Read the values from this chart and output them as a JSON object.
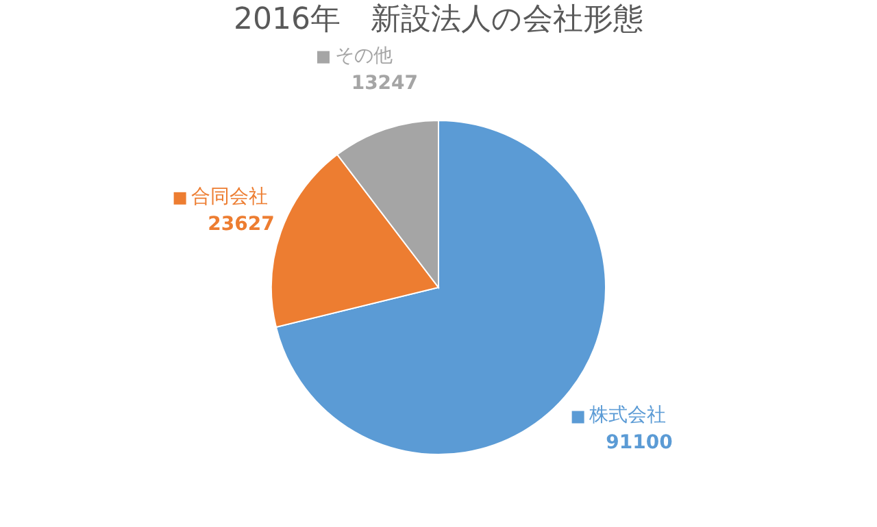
{
  "chart_data": {
    "type": "pie",
    "title": "2016年　新設法人の会社形態",
    "categories": [
      "株式会社",
      "合同会社",
      "その他"
    ],
    "values": [
      91100,
      23627,
      13247
    ],
    "colors": [
      "#5b9bd5",
      "#ed7d31",
      "#a5a5a5"
    ],
    "data_labels": true,
    "legend": "left"
  }
}
